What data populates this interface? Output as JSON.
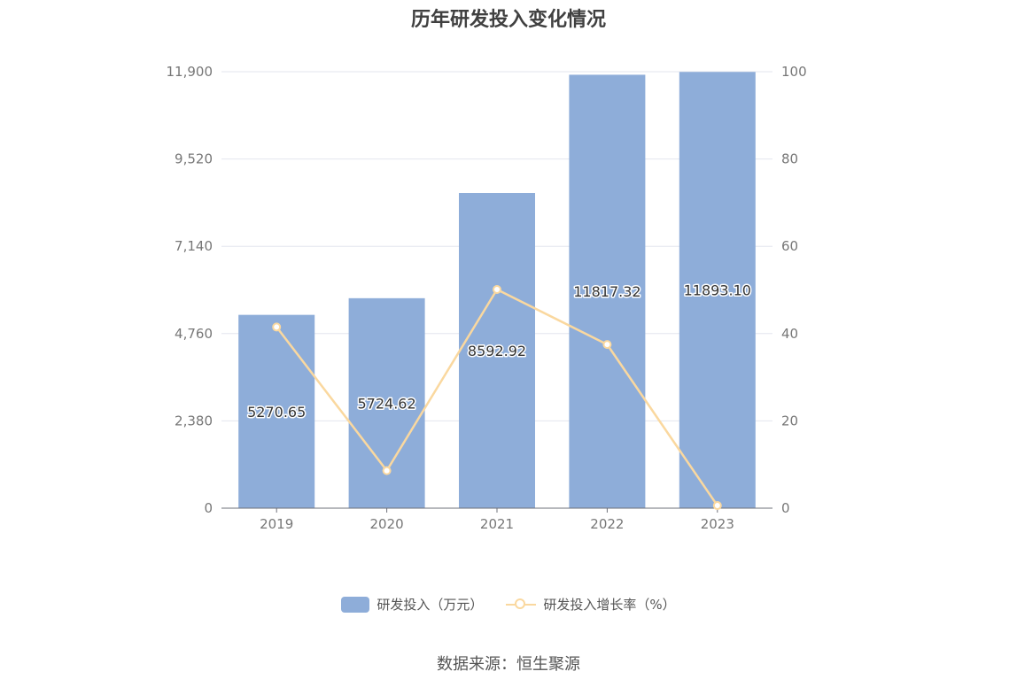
{
  "title": "历年研发投入变化情况",
  "source": "数据来源：恒生聚源",
  "colors": {
    "bar": "#8eadd9",
    "line": "#fad89f",
    "grid": "#e3e6ee",
    "axis": "#6e7079"
  },
  "chart_data": {
    "type": "bar",
    "title": "历年研发投入变化情况",
    "categories": [
      "2019",
      "2020",
      "2021",
      "2022",
      "2023"
    ],
    "series": [
      {
        "name": "研发投入（万元）",
        "type": "bar",
        "axis": "left",
        "values": [
          5270.65,
          5724.62,
          8592.92,
          11817.32,
          11893.1
        ],
        "labels": [
          "5270.65",
          "5724.62",
          "8592.92",
          "11817.32",
          "11893.10"
        ]
      },
      {
        "name": "研发投入增长率（%）",
        "type": "line",
        "axis": "right",
        "values": [
          41.5,
          8.6,
          50.1,
          37.5,
          0.6
        ]
      }
    ],
    "y_left": {
      "min": 0,
      "max": 11900,
      "ticks": [
        "0",
        "2,380",
        "4,760",
        "7,140",
        "9,520",
        "11,900"
      ]
    },
    "y_right": {
      "min": 0,
      "max": 100,
      "ticks": [
        "0",
        "20",
        "40",
        "60",
        "80",
        "100"
      ]
    },
    "grid": true,
    "legend_position": "bottom"
  }
}
